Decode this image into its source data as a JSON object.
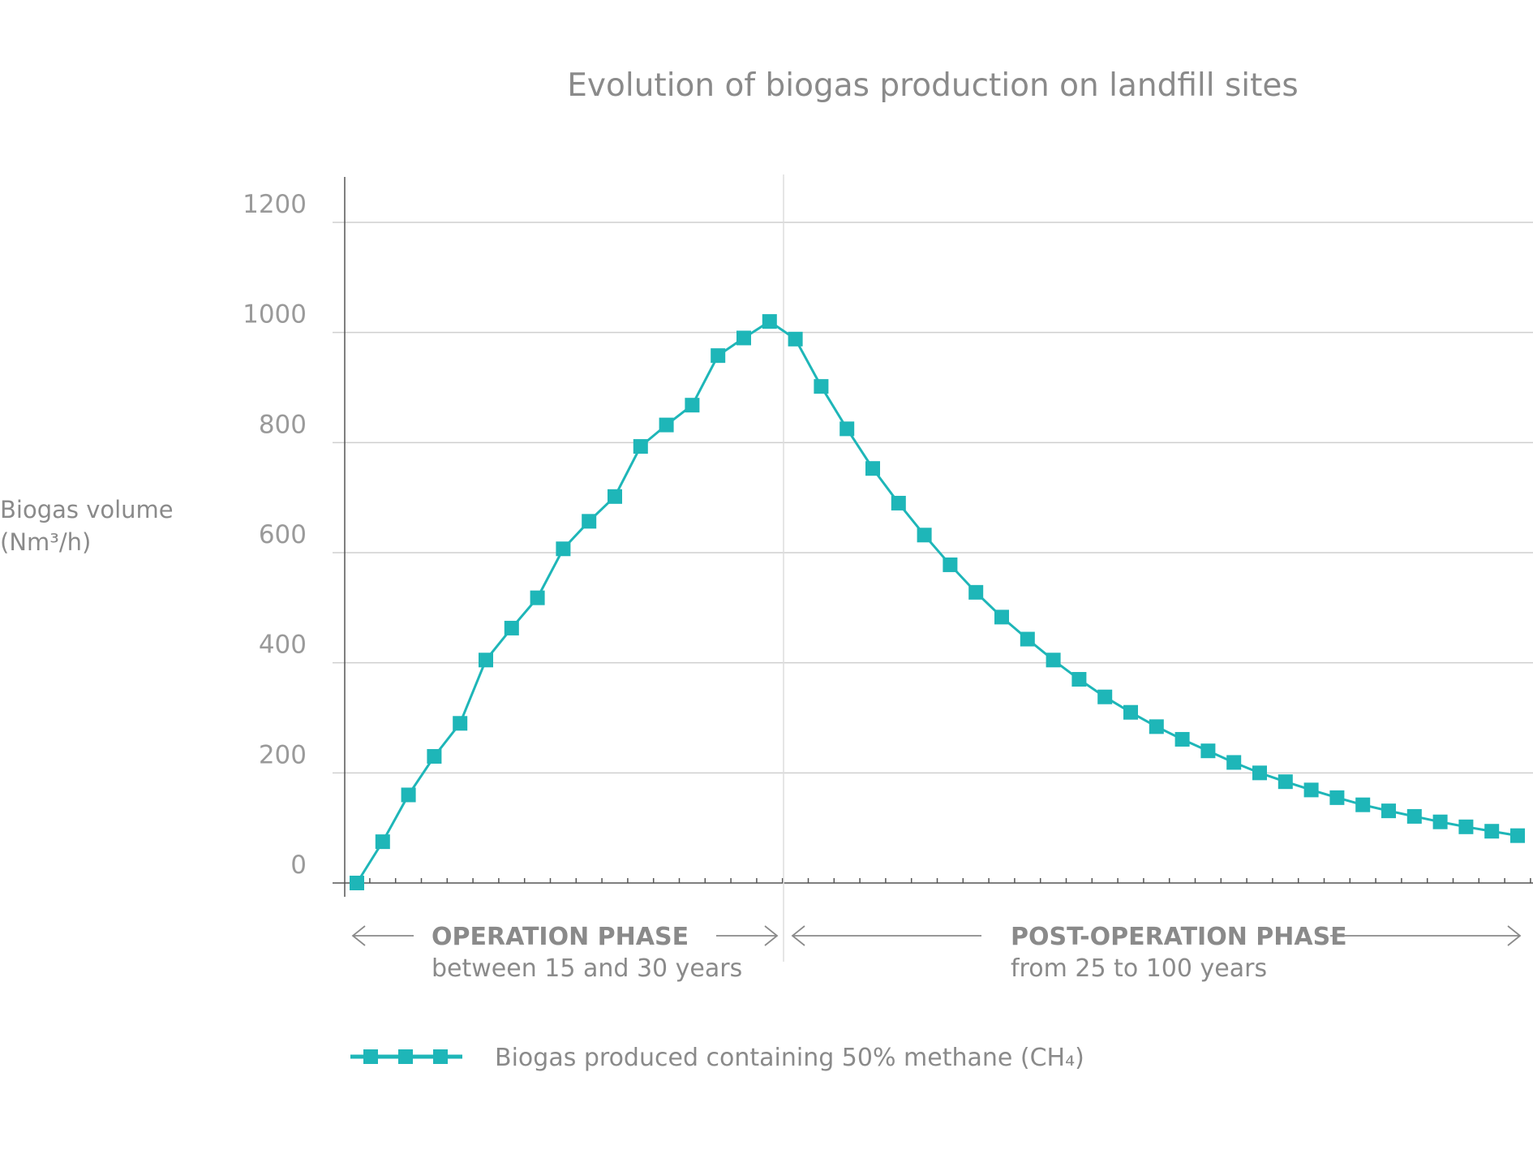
{
  "colors": {
    "series": "#1eb6b8",
    "text": "#8a8a8a",
    "grid": "#cfcfcf"
  },
  "chart_data": {
    "type": "line",
    "title": "Evolution of biogas production on landfill sites",
    "ylabel_line1": "Biogas volume",
    "ylabel_line2": "(Nm³/h)",
    "ylim": [
      0,
      1200
    ],
    "yticks": [
      0,
      200,
      400,
      600,
      800,
      1000,
      1200
    ],
    "grid": true,
    "legend_position": "bottom",
    "series": [
      {
        "name": "Biogas produced containing 50% methane (CH₄)",
        "marker": "square",
        "values": [
          0,
          75,
          160,
          230,
          290,
          405,
          463,
          518,
          607,
          657,
          702,
          793,
          832,
          868,
          958,
          990,
          1020,
          988,
          902,
          825,
          753,
          690,
          632,
          578,
          528,
          483,
          443,
          405,
          370,
          338,
          310,
          284,
          261,
          240,
          219,
          200,
          184,
          169,
          155,
          142,
          131,
          121,
          111,
          102,
          94,
          86
        ]
      }
    ],
    "phases": [
      {
        "title": "OPERATION PHASE",
        "subtitle": "between 15 and 30 years"
      },
      {
        "title": "POST-OPERATION PHASE",
        "subtitle": "from 25 to 100 years"
      }
    ]
  }
}
